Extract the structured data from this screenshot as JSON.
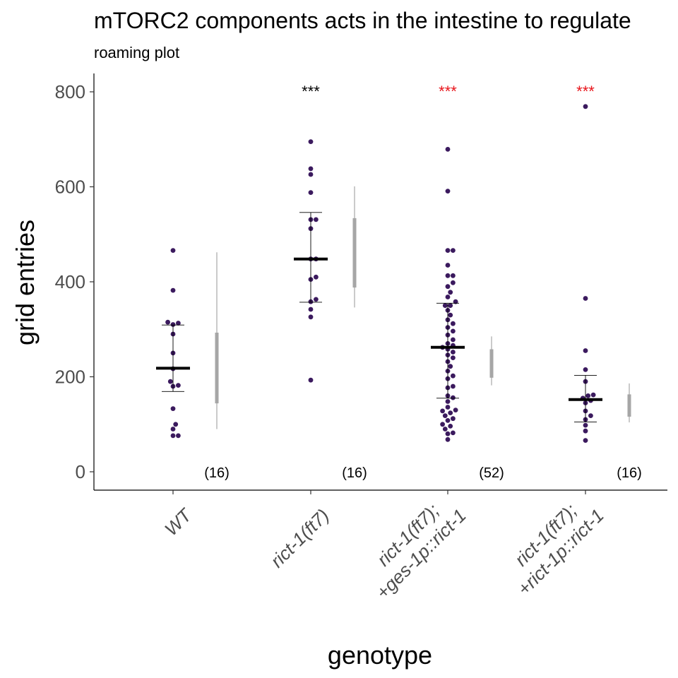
{
  "chart_data": {
    "type": "scatter",
    "title": "mTORC2 components acts in the intestine to regulate",
    "subtitle": "roaming plot",
    "xlabel": "genotype",
    "ylabel": "grid entries",
    "ylim": [
      -40,
      840
    ],
    "yticks": [
      0,
      200,
      400,
      600,
      800
    ],
    "grid": false,
    "legend": "none",
    "colors": {
      "point": "#3b1a5e",
      "mean_bar": "#000000",
      "errorbar": "#000000",
      "ci": "#a6a6a6",
      "sig_black": "#000000",
      "sig_red": "#e8151b"
    },
    "groups": [
      {
        "tick_lines": [
          "WT"
        ],
        "n_label": "(16)",
        "significance": "",
        "significance_color": "black",
        "mean": 218,
        "sd_low": 169,
        "sd_high": 309,
        "ci_outer": [
          90,
          462
        ],
        "ci_inner": [
          144,
          293
        ],
        "ci_point": 205,
        "values": [
          466,
          382,
          315,
          313,
          310,
          290,
          250,
          217,
          190,
          182,
          180,
          133,
          100,
          90,
          76,
          76
        ]
      },
      {
        "tick_lines": [
          "rict-1(ft7)"
        ],
        "n_label": "(16)",
        "significance": "***",
        "significance_color": "black",
        "mean": 448,
        "sd_low": 357,
        "sd_high": 546,
        "ci_outer": [
          346,
          601
        ],
        "ci_inner": [
          388,
          534
        ],
        "ci_point": 455,
        "values": [
          695,
          638,
          626,
          588,
          531,
          531,
          512,
          448,
          448,
          410,
          405,
          363,
          358,
          342,
          326,
          193
        ]
      },
      {
        "tick_lines": [
          "rict-1(ft7);",
          "+ges-1p::rict-1"
        ],
        "n_label": "(52)",
        "significance": "***",
        "significance_color": "red",
        "mean": 262,
        "sd_low": 155,
        "sd_high": 355,
        "ci_outer": [
          182,
          285
        ],
        "ci_inner": [
          198,
          258
        ],
        "ci_point": 224,
        "values": [
          679,
          591,
          466,
          466,
          435,
          413,
          413,
          398,
          390,
          378,
          368,
          358,
          350,
          350,
          340,
          330,
          320,
          312,
          304,
          296,
          288,
          278,
          270,
          266,
          262,
          258,
          252,
          246,
          240,
          232,
          222,
          212,
          202,
          196,
          180,
          177,
          160,
          156,
          148,
          136,
          130,
          128,
          124,
          118,
          112,
          108,
          100,
          96,
          90,
          82,
          80,
          68
        ]
      },
      {
        "tick_lines": [
          "rict-1(ft7);",
          "+rict-1p::rict-1"
        ],
        "n_label": "(16)",
        "significance": "***",
        "significance_color": "red",
        "mean": 152,
        "sd_low": 105,
        "sd_high": 203,
        "ci_outer": [
          104,
          186
        ],
        "ci_inner": [
          116,
          163
        ],
        "ci_point": 140,
        "values": [
          769,
          365,
          255,
          215,
          190,
          162,
          160,
          155,
          150,
          145,
          128,
          118,
          110,
          98,
          86,
          66
        ]
      }
    ]
  }
}
